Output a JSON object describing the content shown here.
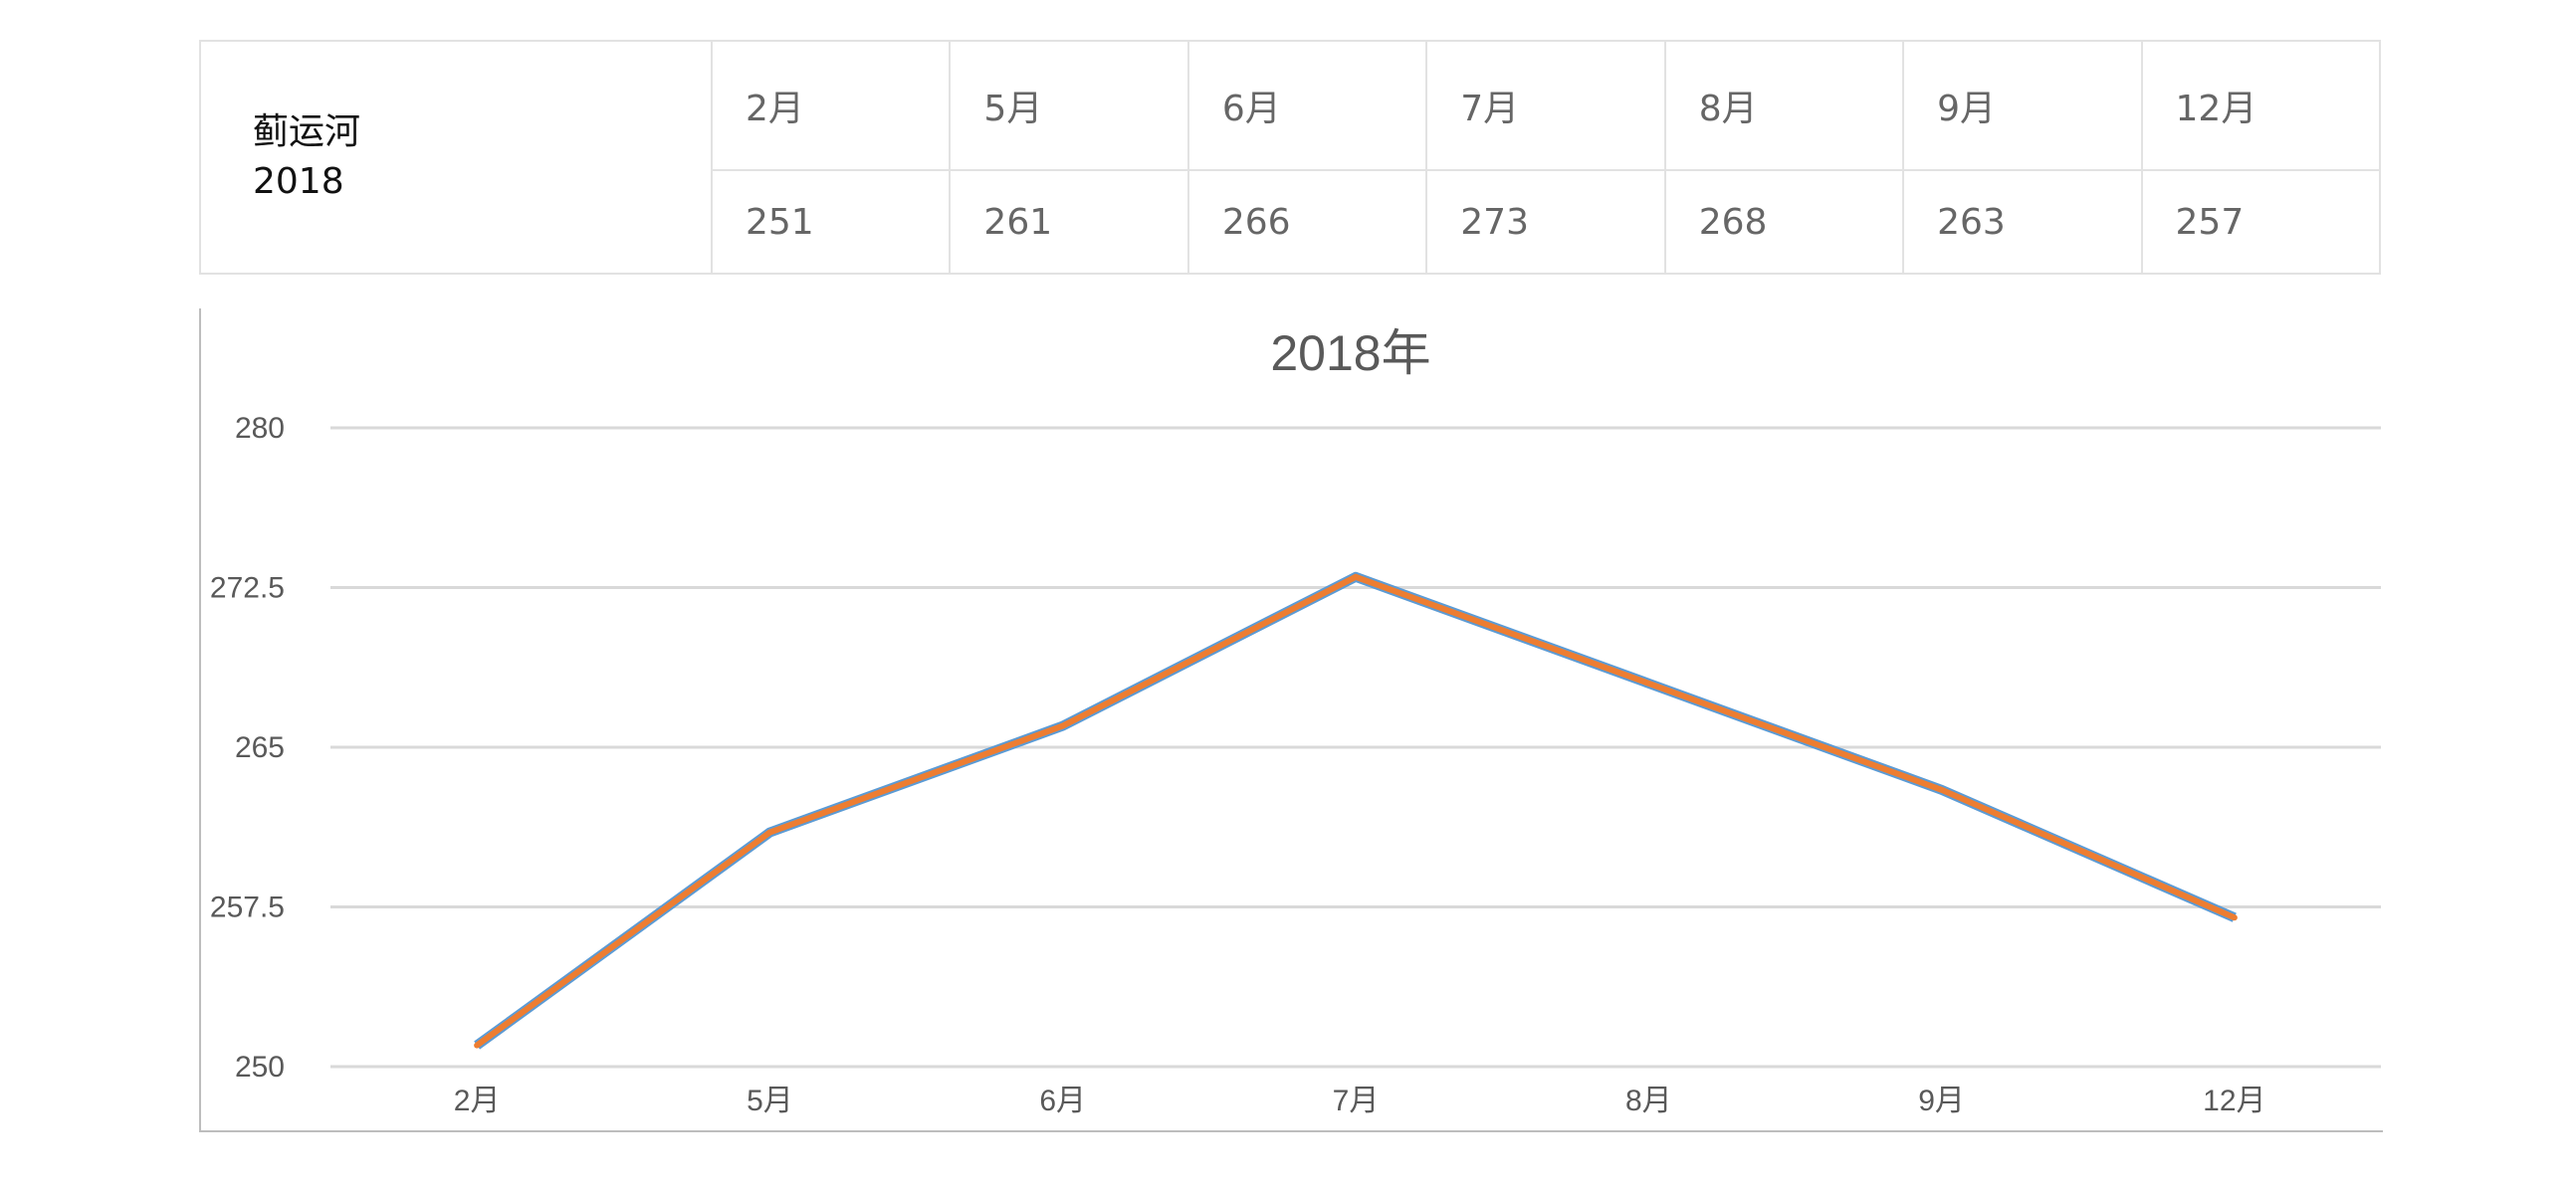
{
  "table": {
    "row_header_line1": "蓟运河",
    "row_header_line2": "2018",
    "months": [
      "2月",
      "5月",
      "6月",
      "7月",
      "8月",
      "9月",
      "12月"
    ],
    "values": [
      "251",
      "261",
      "266",
      "273",
      "268",
      "263",
      "257"
    ]
  },
  "chart_data": {
    "type": "line",
    "title": "2018年",
    "categories": [
      "2月",
      "5月",
      "6月",
      "7月",
      "8月",
      "9月",
      "12月"
    ],
    "series": [
      {
        "values": [
          251,
          261,
          266,
          273,
          268,
          263,
          257
        ]
      }
    ],
    "ylim": [
      250,
      280
    ],
    "yticks": [
      "250",
      "257.5",
      "265",
      "272.5",
      "280"
    ],
    "grid": true,
    "line_color": "#ED7D31",
    "shadow_color": "#5B9BD5",
    "xlabel": "",
    "ylabel": ""
  }
}
